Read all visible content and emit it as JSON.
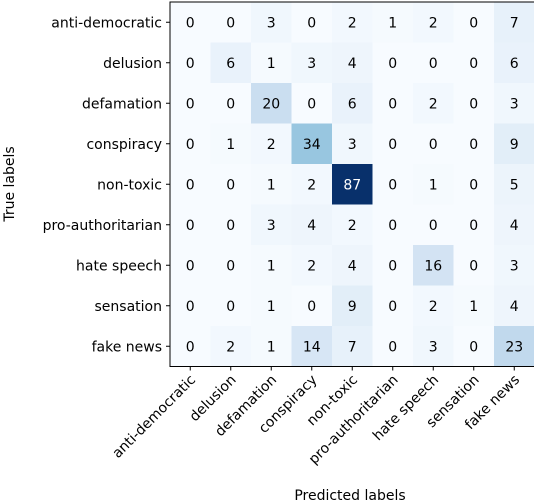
{
  "chart_data": {
    "type": "heatmap",
    "xlabel": "Predicted labels",
    "ylabel": "True labels",
    "x_categories": [
      "anti-democratic",
      "delusion",
      "defamation",
      "conspiracy",
      "non-toxic",
      "pro-authoritarian",
      "hate speech",
      "sensation",
      "fake news"
    ],
    "y_categories": [
      "anti-democratic",
      "delusion",
      "defamation",
      "conspiracy",
      "non-toxic",
      "pro-authoritarian",
      "hate speech",
      "sensation",
      "fake news"
    ],
    "values": [
      [
        0,
        0,
        3,
        0,
        2,
        1,
        2,
        0,
        7
      ],
      [
        0,
        6,
        1,
        3,
        4,
        0,
        0,
        0,
        6
      ],
      [
        0,
        0,
        20,
        0,
        6,
        0,
        2,
        0,
        3
      ],
      [
        0,
        1,
        2,
        34,
        3,
        0,
        0,
        0,
        9
      ],
      [
        0,
        0,
        1,
        2,
        87,
        0,
        1,
        0,
        5
      ],
      [
        0,
        0,
        3,
        4,
        2,
        0,
        0,
        0,
        4
      ],
      [
        0,
        0,
        1,
        2,
        4,
        0,
        16,
        0,
        3
      ],
      [
        0,
        0,
        1,
        0,
        9,
        0,
        2,
        1,
        4
      ],
      [
        0,
        2,
        1,
        14,
        7,
        0,
        3,
        0,
        23
      ]
    ],
    "colormap": "Blues",
    "vmin": 0,
    "vmax": 87,
    "grid": false,
    "legend": "none"
  }
}
